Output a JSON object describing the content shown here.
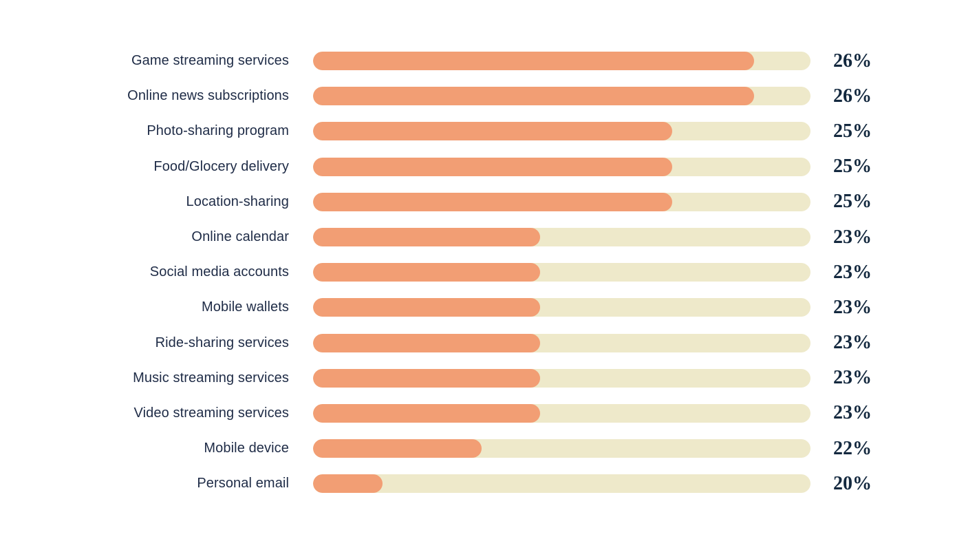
{
  "page": {
    "background": "#ffffff"
  },
  "chart_data": {
    "type": "bar",
    "orientation": "horizontal",
    "title": "",
    "xlabel": "",
    "ylabel": "",
    "grid": false,
    "legend": null,
    "axes_visible": false,
    "categories": [
      "Game streaming services",
      "Online news subscriptions",
      "Photo-sharing program",
      "Food/Glocery delivery",
      "Location-sharing",
      "Online calendar",
      "Social media accounts",
      "Mobile wallets",
      "Ride-sharing services",
      "Music streaming services",
      "Video streaming services",
      "Mobile device",
      "Personal email"
    ],
    "values": [
      26,
      26,
      25,
      25,
      25,
      23,
      23,
      23,
      23,
      23,
      23,
      22,
      20
    ],
    "value_labels": [
      "26%",
      "26%",
      "25%",
      "25%",
      "25%",
      "23%",
      "23%",
      "23%",
      "23%",
      "23%",
      "23%",
      "22%",
      "20%"
    ],
    "bar_fill_pct_of_track": [
      88.7,
      88.7,
      72.2,
      72.2,
      72.2,
      45.6,
      45.6,
      45.6,
      45.6,
      45.6,
      45.6,
      33.9,
      14.0
    ],
    "colors": {
      "bar_fill": "#F29E74",
      "bar_track": "#EEE9CA",
      "category_text": "#1E2B46",
      "value_text": "#14293F"
    }
  }
}
